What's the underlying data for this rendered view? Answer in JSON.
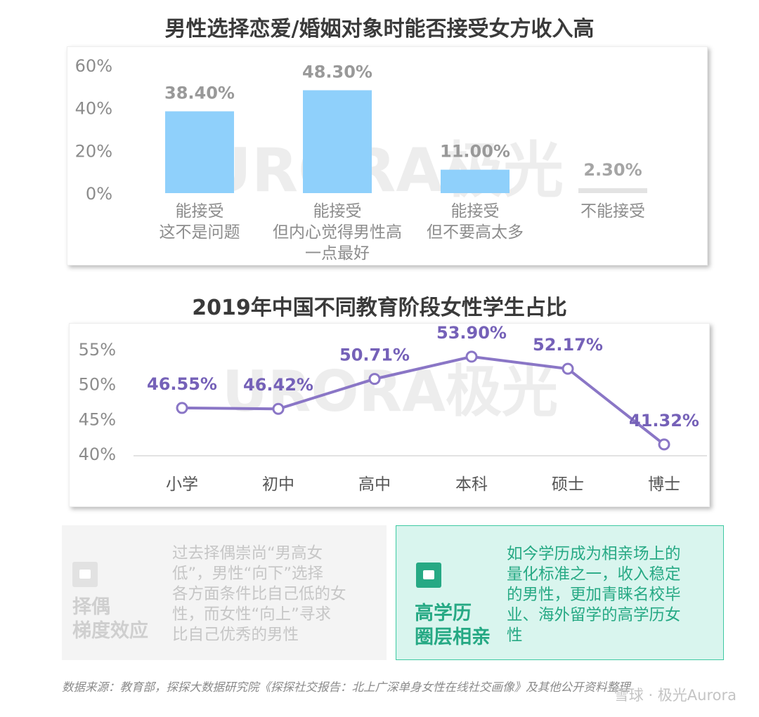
{
  "chart_data": [
    {
      "type": "bar",
      "title": "男性选择恋爱/婚姻对象时能否接受女方收入高",
      "categories": [
        [
          "能接受",
          "这不是问题"
        ],
        [
          "能接受",
          "但内心觉得男性高",
          "一点最好"
        ],
        [
          "能接受",
          "但不要高太多"
        ],
        [
          "不能接受"
        ]
      ],
      "values": [
        38.4,
        48.3,
        11.0,
        2.3
      ],
      "data_labels": [
        "38.40%",
        "48.30%",
        "11.00%",
        "2.30%"
      ],
      "value_colors": [
        "#8fd0fb",
        "#8fd0fb",
        "#8fd0fb",
        "#e3e3e3"
      ],
      "label_colors": [
        "#999999",
        "#999999",
        "#999999",
        "#a5a5a5"
      ],
      "yticks": [
        "0%",
        "20%",
        "40%",
        "60%"
      ],
      "ylim": [
        0,
        60
      ],
      "grid": false,
      "watermark": "URORA极光"
    },
    {
      "type": "line",
      "title": "2019年中国不同教育阶段女性学生占比",
      "categories": [
        "小学",
        "初中",
        "高中",
        "本科",
        "硕士",
        "博士"
      ],
      "values": [
        46.55,
        46.42,
        50.71,
        53.9,
        52.17,
        41.32
      ],
      "data_labels": [
        "46.55%",
        "46.42%",
        "50.71%",
        "53.90%",
        "52.17%",
        "41.32%"
      ],
      "yticks": [
        "40%",
        "45%",
        "50%",
        "55%"
      ],
      "ylim": [
        40,
        55
      ],
      "line_color": "#8a76c6",
      "label_color": "#7561b8",
      "grid": false,
      "watermark": "URORA极光"
    }
  ],
  "left_box": {
    "heading": [
      "择偶",
      "梯度效应"
    ],
    "text": [
      "过去择偶崇尚“男高女",
      "低”，男性“向下”选择",
      "各方面条件比自己低的女",
      "性，而女性“向上”寻求",
      "比自己优秀的男性"
    ],
    "icon": "chat-icon"
  },
  "right_box": {
    "heading": [
      "高学历",
      "圈层相亲"
    ],
    "text": [
      "如今学历成为相亲场上的",
      "量化标准之一，收入稳定",
      "的男性，更加青睐名校毕",
      "业、海外留学的高学历女",
      "性"
    ],
    "icon": "sofa-icon"
  },
  "source": "数据来源：教育部，探探大数据研究院《探探社交报告：北上广深单身女性在线社交画像》及其他公开资料整理",
  "footer": "雪球 · 极光Aurora",
  "colors": {
    "accent_green": "#26a984",
    "bar_blue": "#8fd0fb",
    "line_purple": "#8a76c6"
  }
}
